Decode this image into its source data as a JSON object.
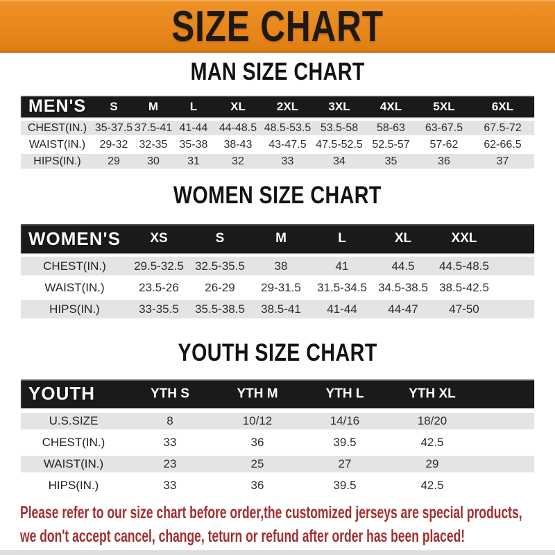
{
  "banner": {
    "title": "SIZE CHART",
    "bg_color": "#E8861C",
    "text_color": "#1D1A15"
  },
  "sections": [
    {
      "id": "men",
      "heading": "MAN SIZE CHART",
      "table": {
        "header_label": "MEN'S",
        "columns": [
          "S",
          "M",
          "L",
          "XL",
          "2XL",
          "3XL",
          "4XL",
          "5XL",
          "6XL"
        ],
        "rows": [
          {
            "label": "CHEST(IN.)",
            "values": [
              "35-37.5",
              "37.5-41",
              "41-44",
              "44-48.5",
              "48.5-53.5",
              "53.5-58",
              "58-63",
              "63-67.5",
              "67.5-72"
            ]
          },
          {
            "label": "WAIST(IN.)",
            "values": [
              "29-32",
              "32-35",
              "35-38",
              "38-43",
              "43-47.5",
              "47.5-52.5",
              "52.5-57",
              "57-62",
              "62-66.5"
            ]
          },
          {
            "label": "HIPS(IN.)",
            "values": [
              "29",
              "30",
              "31",
              "32",
              "33",
              "34",
              "35",
              "36",
              "37"
            ]
          }
        ]
      }
    },
    {
      "id": "women",
      "heading": "WOMEN SIZE CHART",
      "table": {
        "header_label": "WOMEN'S",
        "columns": [
          "XS",
          "S",
          "M",
          "L",
          "XL",
          "XXL"
        ],
        "rows": [
          {
            "label": "CHEST(IN.)",
            "values": [
              "29.5-32.5",
              "32.5-35.5",
              "38",
              "41",
              "44.5",
              "44.5-48.5"
            ]
          },
          {
            "label": "WAIST(IN.)",
            "values": [
              "23.5-26",
              "26-29",
              "29-31.5",
              "31.5-34.5",
              "34.5-38.5",
              "38.5-42.5"
            ]
          },
          {
            "label": "HIPS(IN.)",
            "values": [
              "33-35.5",
              "35.5-38.5",
              "38.5-41",
              "41-44",
              "44-47",
              "47-50"
            ]
          }
        ]
      }
    },
    {
      "id": "youth",
      "heading": "YOUTH SIZE CHART",
      "table": {
        "header_label": "YOUTH",
        "columns": [
          "YTH S",
          "YTH M",
          "YTH L",
          "YTH XL"
        ],
        "rows": [
          {
            "label": "U.S.SIZE",
            "values": [
              "8",
              "10/12",
              "14/16",
              "18/20"
            ]
          },
          {
            "label": "CHEST(IN.)",
            "values": [
              "33",
              "36",
              "39.5",
              "42.5"
            ]
          },
          {
            "label": "WAIST(IN.)",
            "values": [
              "23",
              "25",
              "27",
              "29"
            ]
          },
          {
            "label": "HIPS(IN.)",
            "values": [
              "33",
              "36",
              "39.5",
              "42.5"
            ]
          }
        ]
      }
    }
  ],
  "footer": {
    "line1": "Please refer to our size chart before order,the customized jerseys are special products,",
    "line2": "we don't accept cancel, change, teturn or refund after order has been placed!",
    "text_color": "#A22F2F"
  },
  "colors": {
    "accent_orange": "#E8861C",
    "table_header_black": "#1A1A1A",
    "row_shade_gray": "#E4E4E4",
    "note_red": "#A22F2F"
  }
}
